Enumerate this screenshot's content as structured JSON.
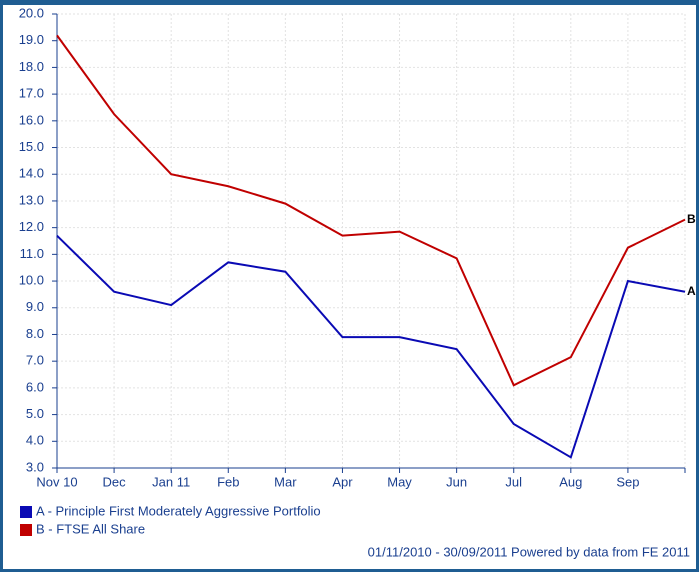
{
  "chart_data": {
    "type": "line",
    "categories": [
      "Nov 10",
      "Dec",
      "Jan 11",
      "Feb",
      "Mar",
      "Apr",
      "May",
      "Jun",
      "Jul",
      "Aug",
      "Sep",
      null
    ],
    "series": [
      {
        "name": "A - Principle First  Moderately Aggressive Portfolio",
        "label": "A",
        "color": "#0a0ab4",
        "values": [
          11.7,
          9.6,
          9.1,
          10.7,
          10.35,
          7.9,
          7.9,
          7.45,
          4.65,
          3.4,
          10.0,
          9.6
        ]
      },
      {
        "name": "B - FTSE All Share",
        "label": "B",
        "color": "#c00000",
        "values": [
          19.2,
          16.25,
          14.0,
          13.55,
          12.9,
          11.7,
          11.85,
          10.85,
          6.1,
          7.15,
          11.25,
          12.3
        ]
      }
    ],
    "ylim": [
      3,
      20
    ],
    "yticks": [
      {
        "value": 3,
        "label": "3.0"
      },
      {
        "value": 4,
        "label": "4.0"
      },
      {
        "value": 5,
        "label": "5.0"
      },
      {
        "value": 6,
        "label": "6.0"
      },
      {
        "value": 7,
        "label": "7.0"
      },
      {
        "value": 8,
        "label": "8.0"
      },
      {
        "value": 9,
        "label": "9.0"
      },
      {
        "value": 10,
        "label": "10.0"
      },
      {
        "value": 11,
        "label": "11.0"
      },
      {
        "value": 12,
        "label": "12.0"
      },
      {
        "value": 13,
        "label": "13.0"
      },
      {
        "value": 14,
        "label": "14.0"
      },
      {
        "value": 15,
        "label": "15.0"
      },
      {
        "value": 16,
        "label": "16.0"
      },
      {
        "value": 17,
        "label": "17.0"
      },
      {
        "value": 18,
        "label": "18.0"
      },
      {
        "value": 19,
        "label": "19.0"
      },
      {
        "value": 20,
        "label": "20.0"
      }
    ],
    "grid": true,
    "footer": "01/11/2010 - 30/09/2011 Powered by data from FE 2011"
  }
}
